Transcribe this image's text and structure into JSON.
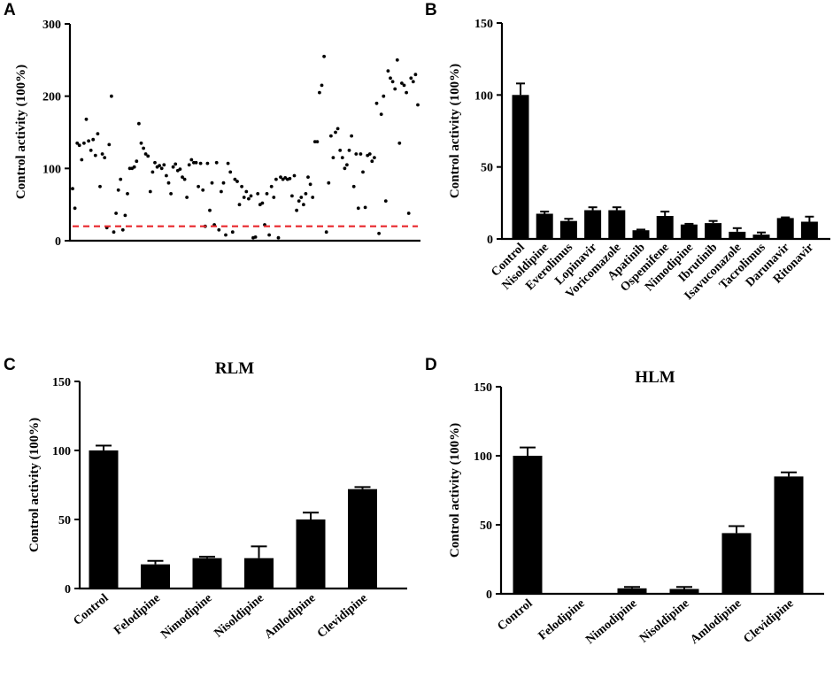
{
  "chart_data": [
    {
      "panel": "A",
      "type": "scatter",
      "title": "",
      "xlabel": "",
      "ylabel": "Control activity (100%)",
      "ylim": [
        0,
        300
      ],
      "yticks": [
        "0",
        "100",
        "200",
        "300"
      ],
      "threshold_line": {
        "value": 20,
        "style": "dashed",
        "color": "#e8262b"
      },
      "y": [
        72,
        45,
        135,
        132,
        112,
        135,
        168,
        138,
        125,
        140,
        118,
        148,
        75,
        120,
        115,
        18,
        133,
        200,
        12,
        38,
        70,
        85,
        15,
        35,
        65,
        100,
        100,
        102,
        110,
        162,
        135,
        128,
        120,
        117,
        68,
        95,
        108,
        102,
        104,
        100,
        105,
        90,
        80,
        65,
        102,
        106,
        97,
        99,
        88,
        85,
        60,
        105,
        112,
        108,
        108,
        75,
        107,
        70,
        20,
        107,
        42,
        80,
        22,
        108,
        15,
        68,
        80,
        8,
        107,
        95,
        12,
        85,
        82,
        50,
        75,
        60,
        68,
        58,
        62,
        4,
        5,
        65,
        50,
        52,
        22,
        65,
        8,
        75,
        60,
        85,
        4,
        88,
        85,
        87,
        85,
        86,
        62,
        90,
        42,
        55,
        60,
        50,
        65,
        88,
        78,
        60,
        137,
        137,
        205,
        215,
        255,
        12,
        80,
        145,
        115,
        150,
        155,
        125,
        115,
        100,
        105,
        125,
        145,
        75,
        120,
        45,
        120,
        95,
        46,
        118,
        120,
        110,
        115,
        190,
        10,
        175,
        200,
        55,
        235,
        225,
        220,
        210,
        250,
        135,
        218,
        215,
        205,
        38,
        225,
        220,
        230,
        188
      ]
    },
    {
      "panel": "B",
      "type": "bar",
      "title": "",
      "xlabel": "",
      "ylabel": "Control activity (100%)",
      "ylim": [
        0,
        150
      ],
      "yticks": [
        "0",
        "50",
        "100",
        "150"
      ],
      "categories": [
        "Control",
        "Nisoldipine",
        "Everolimus",
        "Lopinavir",
        "Voricomazole",
        "Apatinib",
        "Ospemifene",
        "Nimodipine",
        "Ibrutinib",
        "Isavuconazole",
        "Tacrolimus",
        "Darunavir",
        "Ritonavir"
      ],
      "values": [
        100,
        17.5,
        12.5,
        20,
        20,
        6,
        16,
        10,
        11,
        5,
        3,
        14.5,
        12
      ],
      "errors": [
        8,
        1.5,
        1.5,
        2,
        2,
        0.5,
        3,
        0.5,
        1.5,
        2.5,
        1.5,
        0.5,
        3.5
      ]
    },
    {
      "panel": "C",
      "type": "bar",
      "title": "RLM",
      "xlabel": "",
      "ylabel": "Control activity (100%)",
      "ylim": [
        0,
        150
      ],
      "yticks": [
        "0",
        "50",
        "100",
        "150"
      ],
      "categories": [
        "Control",
        "Felodipine",
        "Nimodipine",
        "Nisoldipine",
        "Amlodipine",
        "Clevidipine"
      ],
      "values": [
        100,
        17.5,
        22,
        22,
        50,
        72
      ],
      "errors": [
        3.5,
        2.5,
        1,
        8.5,
        5,
        1.5
      ]
    },
    {
      "panel": "D",
      "type": "bar",
      "title": "HLM",
      "xlabel": "",
      "ylabel": "Control activity (100%)",
      "ylim": [
        0,
        150
      ],
      "yticks": [
        "0",
        "50",
        "100",
        "150"
      ],
      "categories": [
        "Control",
        "Felodipine",
        "Nimodipine",
        "Nisoldipine",
        "Amlodipine",
        "Clevidipine"
      ],
      "values": [
        100,
        0,
        4,
        3.5,
        44,
        85
      ],
      "errors": [
        6,
        0,
        1,
        1.5,
        5,
        3
      ]
    }
  ]
}
